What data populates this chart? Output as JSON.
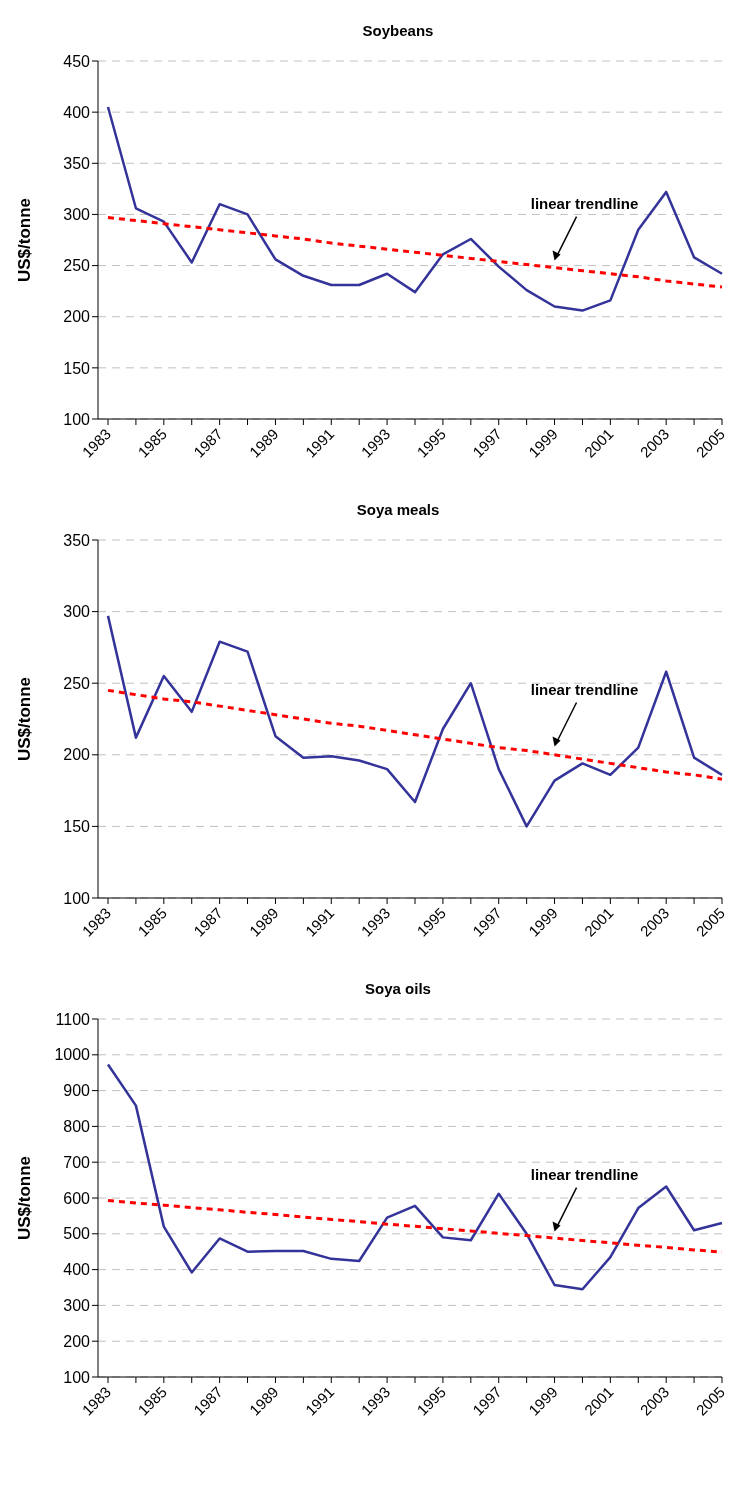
{
  "chart_data": [
    {
      "type": "line",
      "title": "Soybeans",
      "ylabel": "US$/tonne",
      "categories": [
        "1983",
        null,
        "1985",
        null,
        "1987",
        null,
        "1989",
        null,
        "1991",
        null,
        "1993",
        null,
        "1995",
        null,
        "1997",
        null,
        "1999",
        null,
        "2001",
        null,
        "2003",
        null,
        "2005"
      ],
      "series": [
        {
          "color": "#333399",
          "line_style": "solid",
          "values": [
            405,
            306,
            293,
            253,
            310,
            300,
            256,
            240,
            231,
            231,
            242,
            224,
            261,
            276,
            249,
            226,
            210,
            206,
            216,
            285,
            322,
            258,
            242
          ]
        },
        {
          "color": "#ff0000",
          "line_style": "dashed",
          "values": [
            297,
            294,
            291,
            288,
            285,
            282,
            279,
            276,
            272,
            269,
            266,
            263,
            260,
            257,
            254,
            251,
            248,
            245,
            242,
            239,
            235,
            232,
            229
          ]
        }
      ],
      "ylim": [
        100,
        450
      ],
      "yticks": [
        100,
        150,
        200,
        250,
        300,
        350,
        400,
        450
      ],
      "grid": "y",
      "marker": "none",
      "annotations": [
        {
          "text": "linear trendline",
          "x": "1999",
          "y": 251
        }
      ]
    },
    {
      "type": "line",
      "title": "Soya meals",
      "ylabel": "US$/tonne",
      "categories": [
        "1983",
        null,
        "1985",
        null,
        "1987",
        null,
        "1989",
        null,
        "1991",
        null,
        "1993",
        null,
        "1995",
        null,
        "1997",
        null,
        "1999",
        null,
        "2001",
        null,
        "2003",
        null,
        "2005"
      ],
      "series": [
        {
          "color": "#333399",
          "line_style": "solid",
          "values": [
            297,
            212,
            255,
            230,
            279,
            272,
            213,
            198,
            199,
            196,
            190,
            167,
            218,
            250,
            190,
            150,
            182,
            194,
            186,
            205,
            258,
            198,
            186
          ]
        },
        {
          "color": "#ff0000",
          "line_style": "dashed",
          "values": [
            245,
            242,
            239,
            237,
            234,
            231,
            228,
            225,
            222,
            220,
            217,
            214,
            211,
            208,
            205,
            203,
            200,
            197,
            194,
            191,
            188,
            186,
            183
          ]
        }
      ],
      "ylim": [
        100,
        350
      ],
      "yticks": [
        100,
        150,
        200,
        250,
        300,
        350
      ],
      "grid": "y",
      "marker": "none",
      "annotations": [
        {
          "text": "linear trendline",
          "x": "1999",
          "y": 203
        }
      ]
    },
    {
      "type": "line",
      "title": "Soya oils",
      "ylabel": "US$/tonne",
      "categories": [
        "1983",
        null,
        "1985",
        null,
        "1987",
        null,
        "1989",
        null,
        "1991",
        null,
        "1993",
        null,
        "1995",
        null,
        "1997",
        null,
        "1999",
        null,
        "2001",
        null,
        "2003",
        null,
        "2005"
      ],
      "series": [
        {
          "color": "#333399",
          "line_style": "solid",
          "values": [
            973,
            858,
            520,
            392,
            487,
            450,
            452,
            452,
            430,
            424,
            545,
            578,
            490,
            482,
            612,
            500,
            357,
            345,
            435,
            572,
            632,
            510,
            530
          ]
        },
        {
          "color": "#ff0000",
          "line_style": "dashed",
          "values": [
            593,
            586,
            580,
            573,
            567,
            560,
            554,
            547,
            540,
            534,
            527,
            521,
            514,
            508,
            501,
            495,
            488,
            481,
            475,
            468,
            462,
            455,
            449
          ]
        }
      ],
      "ylim": [
        100,
        1100
      ],
      "yticks": [
        100,
        200,
        300,
        400,
        500,
        600,
        700,
        800,
        900,
        1000,
        1100
      ],
      "grid": "y",
      "marker": "none",
      "annotations": [
        {
          "text": "linear trendline",
          "x": "1999",
          "y": 495
        }
      ]
    }
  ]
}
